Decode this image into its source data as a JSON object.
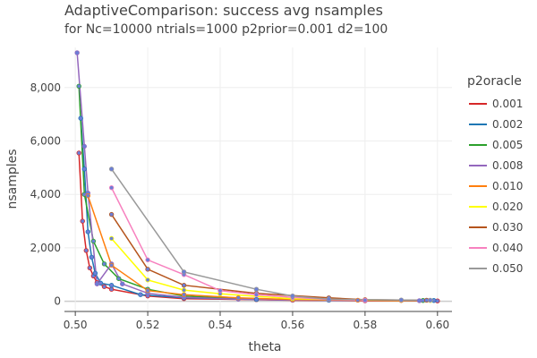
{
  "chart_data": {
    "type": "line",
    "title": "AdaptiveComparison: success avg nsamples",
    "subtitle": "for Nc=10000 ntrials=1000 p2prior=0.001 d2=100",
    "xlabel": "theta",
    "ylabel": "nsamples",
    "xlim": [
      0.497,
      0.604
    ],
    "ylim": [
      -380,
      9500
    ],
    "xticks": [
      0.5,
      0.52,
      0.54,
      0.56,
      0.58,
      0.6
    ],
    "xtick_labels": [
      "0.50",
      "0.52",
      "0.54",
      "0.56",
      "0.58",
      "0.60"
    ],
    "yticks": [
      0,
      2000,
      4000,
      6000,
      8000
    ],
    "ytick_labels": [
      "0",
      "2,000",
      "4,000",
      "6,000",
      "8,000"
    ],
    "grid": true,
    "legend": {
      "title": "p2oracle",
      "placement": "right"
    },
    "marker_color": "#6b7fd7",
    "series": [
      {
        "name": "0.001",
        "color": "#d62728",
        "x": [
          0.501,
          0.502,
          0.503,
          0.504,
          0.505,
          0.506,
          0.508,
          0.51,
          0.52,
          0.53,
          0.55,
          0.56,
          0.58,
          0.6
        ],
        "y": [
          5550,
          3000,
          1900,
          1250,
          950,
          700,
          550,
          450,
          200,
          100,
          60,
          40,
          20,
          15
        ]
      },
      {
        "name": "0.002",
        "color": "#1f77b4",
        "x": [
          0.5015,
          0.5025,
          0.5035,
          0.5045,
          0.5055,
          0.507,
          0.51,
          0.518,
          0.53,
          0.55,
          0.57,
          0.599
        ],
        "y": [
          6850,
          4950,
          2600,
          1650,
          1050,
          680,
          600,
          250,
          130,
          70,
          40,
          30
        ]
      },
      {
        "name": "0.005",
        "color": "#2ca02c",
        "x": [
          0.501,
          0.5025,
          0.505,
          0.508,
          0.512,
          0.52,
          0.53,
          0.545,
          0.56,
          0.58,
          0.596
        ],
        "y": [
          8050,
          4000,
          2250,
          1400,
          850,
          450,
          200,
          100,
          60,
          40,
          30
        ]
      },
      {
        "name": "0.008",
        "color": "#9467bd",
        "x": [
          0.5005,
          0.5025,
          0.5035,
          0.506,
          0.51,
          0.513,
          0.52,
          0.53,
          0.545,
          0.56,
          0.58,
          0.595
        ],
        "y": [
          9300,
          5800,
          4050,
          650,
          1400,
          650,
          300,
          150,
          80,
          50,
          30,
          25
        ]
      },
      {
        "name": "0.010",
        "color": "#ff7f0e",
        "x": [
          0.5035,
          0.51,
          0.52,
          0.53,
          0.545,
          0.56,
          0.578,
          0.59
        ],
        "y": [
          3950,
          1350,
          400,
          250,
          130,
          70,
          40,
          30
        ]
      },
      {
        "name": "0.020",
        "color": "#ffff00",
        "x": [
          0.51,
          0.52,
          0.53,
          0.54,
          0.56,
          0.58,
          0.598
        ],
        "y": [
          2350,
          800,
          420,
          280,
          100,
          50,
          30
        ]
      },
      {
        "name": "0.030",
        "color": "#b5541c",
        "x": [
          0.51,
          0.52,
          0.53,
          0.55,
          0.57,
          0.58,
          0.597
        ],
        "y": [
          3250,
          1200,
          600,
          300,
          130,
          60,
          40
        ]
      },
      {
        "name": "0.040",
        "color": "#f781bf",
        "x": [
          0.51,
          0.52,
          0.53,
          0.54,
          0.55,
          0.56,
          0.57,
          0.58
        ],
        "y": [
          4250,
          1550,
          1000,
          400,
          250,
          150,
          70,
          40
        ]
      },
      {
        "name": "0.050",
        "color": "#999999",
        "x": [
          0.51,
          0.53,
          0.55,
          0.56,
          0.57,
          0.59,
          0.598
        ],
        "y": [
          4950,
          1100,
          450,
          200,
          80,
          50,
          40
        ]
      }
    ]
  }
}
